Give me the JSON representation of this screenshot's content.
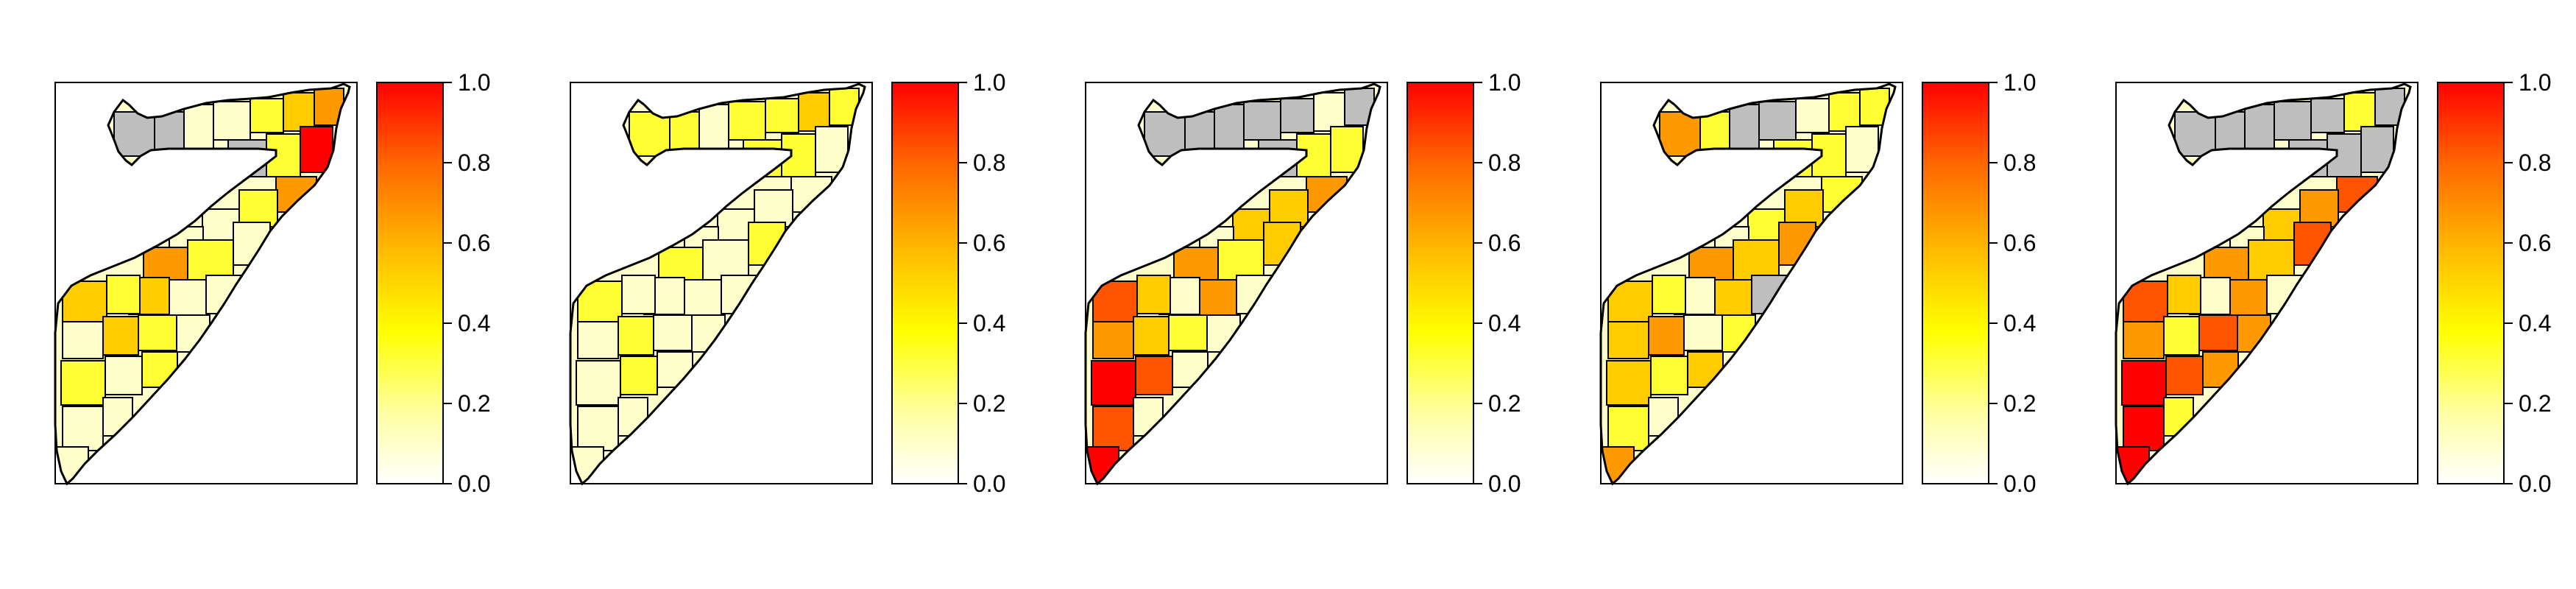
{
  "chart_data": [
    {
      "type": "map",
      "colorbar": {
        "min": 0.0,
        "max": 1.0,
        "ticks": [
          "0.0",
          "0.2",
          "0.4",
          "0.6",
          "0.8",
          "1.0"
        ]
      },
      "palette": [
        "#ffffcc",
        "#ffff33",
        "#ffcc00",
        "#ff9900",
        "#ff5500",
        "#ff0000"
      ],
      "missing_color": "#bebebe"
    },
    {
      "type": "map",
      "colorbar": {
        "min": 0.0,
        "max": 1.0,
        "ticks": [
          "0.0",
          "0.2",
          "0.4",
          "0.6",
          "0.8",
          "1.0"
        ]
      },
      "palette": [
        "#ffffcc",
        "#ffff33",
        "#ffcc00",
        "#ff9900",
        "#ff5500",
        "#ff0000"
      ],
      "missing_color": "#bebebe"
    },
    {
      "type": "map",
      "colorbar": {
        "min": 0.0,
        "max": 1.0,
        "ticks": [
          "0.0",
          "0.2",
          "0.4",
          "0.6",
          "0.8",
          "1.0"
        ]
      },
      "palette": [
        "#ffffcc",
        "#ffff33",
        "#ffcc00",
        "#ff9900",
        "#ff5500",
        "#ff0000"
      ],
      "missing_color": "#bebebe"
    },
    {
      "type": "map",
      "colorbar": {
        "min": 0.0,
        "max": 1.0,
        "ticks": [
          "0.0",
          "0.2",
          "0.4",
          "0.6",
          "0.8",
          "1.0"
        ]
      },
      "palette": [
        "#ffffcc",
        "#ffff33",
        "#ffcc00",
        "#ff9900",
        "#ff5500",
        "#ff0000"
      ],
      "missing_color": "#bebebe"
    },
    {
      "type": "map",
      "colorbar": {
        "min": 0.0,
        "max": 1.0,
        "ticks": [
          "0.0",
          "0.2",
          "0.4",
          "0.6",
          "0.8",
          "1.0"
        ]
      },
      "palette": [
        "#ffffcc",
        "#ffff33",
        "#ffcc00",
        "#ff9900",
        "#ff5500",
        "#ff0000"
      ],
      "missing_color": "#bebebe"
    }
  ]
}
